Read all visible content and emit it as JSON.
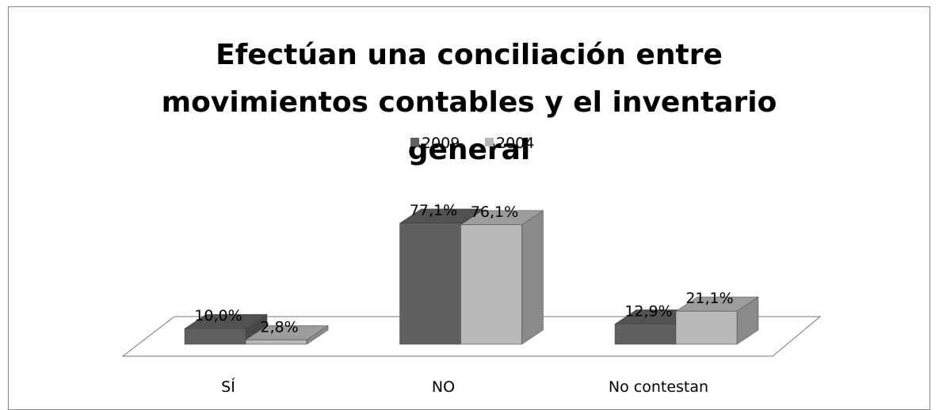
{
  "chart_data": {
    "type": "bar3d",
    "title": "Efectúan una conciliación entre movimientos contables y el inventario general",
    "categories": [
      "SÍ",
      "NO",
      "No contestan"
    ],
    "series": [
      {
        "name": "2009",
        "color": "#606060",
        "values": [
          10.0,
          77.1,
          12.9
        ],
        "value_labels": [
          "10,0%",
          "77,1%",
          "12,9%"
        ]
      },
      {
        "name": "2004",
        "color": "#b8b8b8",
        "values": [
          2.8,
          76.1,
          21.1
        ],
        "value_labels": [
          "2,8%",
          "76,1%",
          "21,1%"
        ]
      }
    ],
    "legend": "top"
  }
}
